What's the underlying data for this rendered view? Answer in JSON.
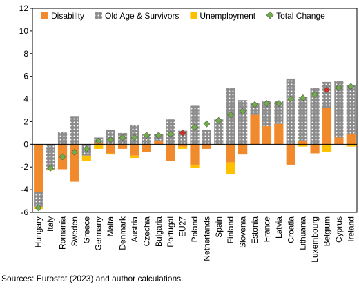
{
  "chart_data": {
    "type": "bar",
    "stacked": true,
    "categories": [
      "Hungary",
      "Italy",
      "Romania",
      "Sweden",
      "Greece",
      "Germany",
      "Malta",
      "Denmark",
      "Austria",
      "Czechia",
      "Bulgaria",
      "Portugal",
      "EU27",
      "Poland",
      "Netherlands",
      "Spain",
      "Finland",
      "Slovenia",
      "Estonia",
      "France",
      "Latvia",
      "Croatia",
      "Lithuania",
      "Luxembourg",
      "Belgium",
      "Cyprus",
      "Ireland"
    ],
    "series": [
      {
        "name": "Disability",
        "color": "#f08a2c",
        "type": "bar",
        "values": [
          -4.2,
          0,
          -2.2,
          -3.3,
          0,
          0.1,
          -0.8,
          -0.4,
          -1.0,
          -0.7,
          0.3,
          -1.5,
          -0.2,
          -1.8,
          -0.4,
          0,
          -1.6,
          -0.9,
          2.6,
          1.6,
          1.8,
          -1.8,
          0.3,
          -0.8,
          3.2,
          0.6,
          0.9
        ]
      },
      {
        "name": "Old Age & Survivors",
        "color": "#8c8c8c",
        "type": "bar",
        "pattern": "dots",
        "values": [
          -1.3,
          -2.2,
          1.1,
          2.5,
          -1.0,
          0.5,
          1.3,
          1.0,
          1.7,
          0.9,
          0.6,
          2.2,
          1.2,
          3.4,
          1.3,
          2.2,
          5.0,
          3.9,
          1.0,
          2.2,
          2.0,
          5.8,
          3.9,
          5.0,
          2.3,
          5.0,
          4.3
        ]
      },
      {
        "name": "Unemployment",
        "color": "#ffc000",
        "type": "bar",
        "values": [
          -0.2,
          -0.1,
          0,
          0,
          -0.5,
          -0.4,
          -0.1,
          0,
          -0.2,
          0,
          0,
          0,
          -0.2,
          -0.3,
          0,
          -0.1,
          -1.0,
          0,
          0,
          0,
          0,
          0,
          -0.2,
          0,
          -0.7,
          0,
          -0.2
        ]
      },
      {
        "name": "Total Change",
        "color": "#70ad47",
        "type": "marker",
        "point_colors": [
          "#70ad47",
          "#70ad47",
          "#70ad47",
          "#70ad47",
          "#70ad47",
          "#70ad47",
          "#70ad47",
          "#70ad47",
          "#70ad47",
          "#70ad47",
          "#70ad47",
          "#70ad47",
          "#d62d20",
          "#70ad47",
          "#70ad47",
          "#70ad47",
          "#70ad47",
          "#70ad47",
          "#70ad47",
          "#70ad47",
          "#70ad47",
          "#70ad47",
          "#70ad47",
          "#70ad47",
          "#d62d20",
          "#70ad47",
          "#70ad47"
        ],
        "values": [
          -5.6,
          -2.1,
          -1.1,
          -0.7,
          -0.4,
          0.3,
          0.4,
          0.6,
          0.6,
          0.8,
          0.8,
          0.9,
          1.0,
          1.5,
          1.8,
          2.1,
          2.6,
          2.9,
          3.5,
          3.6,
          3.6,
          4.0,
          4.1,
          4.4,
          4.8,
          5.0,
          5.1
        ]
      }
    ],
    "ylim": [
      -6,
      12
    ],
    "yticks": [
      -6,
      -4,
      -2,
      0,
      2,
      4,
      6,
      8,
      10,
      12
    ],
    "note": "Sources: Eurostat (2023) and author calculations."
  }
}
